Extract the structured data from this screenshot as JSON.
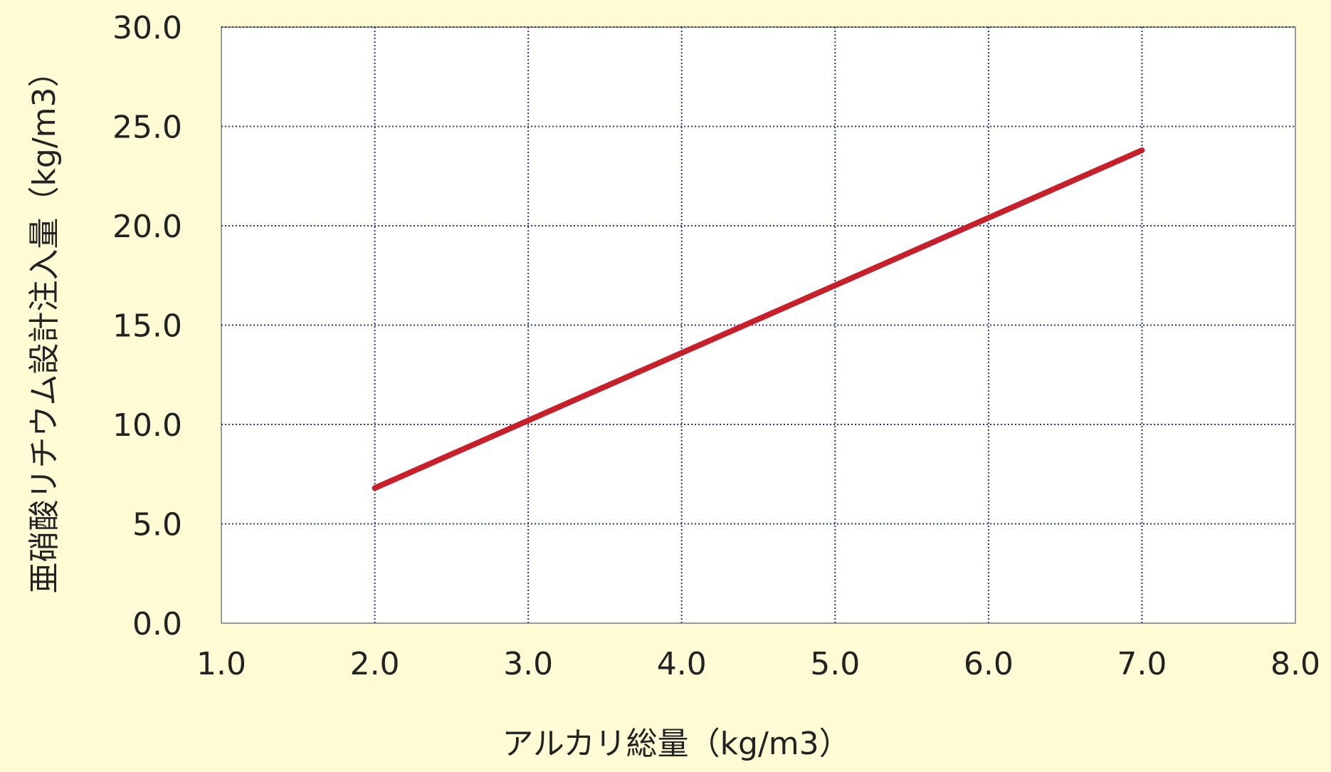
{
  "chart_data": {
    "type": "line",
    "xlabel": "アルカリ総量（kg/m3）",
    "ylabel": "亜硝酸リチウム設計注入量（kg/m3）",
    "xlim": [
      1.0,
      8.0
    ],
    "ylim": [
      0.0,
      30.0
    ],
    "x_ticks": [
      "1.0",
      "2.0",
      "3.0",
      "4.0",
      "5.0",
      "6.0",
      "7.0",
      "8.0"
    ],
    "y_ticks": [
      "0.0",
      "5.0",
      "10.0",
      "15.0",
      "20.0",
      "25.0",
      "30.0"
    ],
    "grid": true,
    "grid_style": "dotted",
    "series": [
      {
        "color": "#c8202a",
        "x": [
          2.0,
          7.0
        ],
        "y": [
          6.8,
          23.8
        ]
      }
    ]
  },
  "colors": {
    "background": "#fffcd5",
    "plot_area": "#ffffff",
    "grid": "#2a3a7a",
    "axis": "#888888",
    "series": "#c8202a"
  }
}
